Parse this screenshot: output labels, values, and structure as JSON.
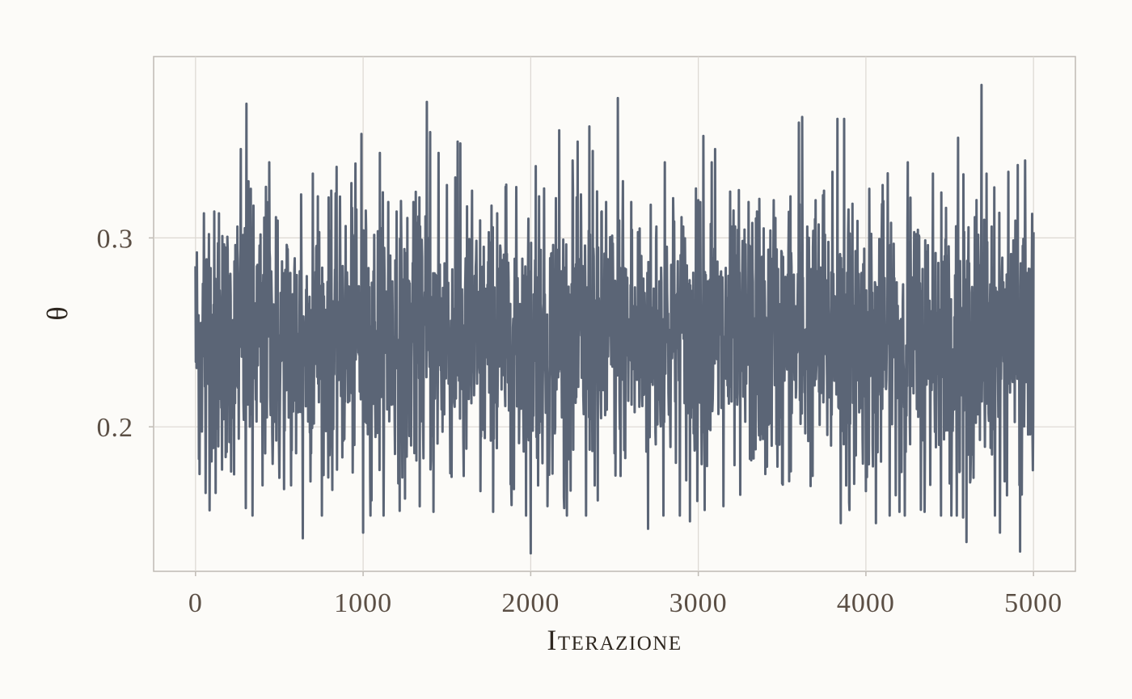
{
  "chart_data": {
    "type": "line",
    "xlabel": "Iterazione",
    "ylabel": "θ",
    "xlim": [
      -250,
      5250
    ],
    "ylim": [
      0.1235,
      0.396
    ],
    "x_ticks": [
      0,
      1000,
      2000,
      3000,
      4000,
      5000
    ],
    "x_tick_labels": [
      "0",
      "1000",
      "2000",
      "3000",
      "4000",
      "5000"
    ],
    "y_ticks": [
      0.2,
      0.3
    ],
    "y_tick_labels": [
      "0.2",
      "0.3"
    ],
    "grid": true,
    "series": [
      {
        "color": "#5b6576",
        "x_start": 1,
        "x_end": 5000,
        "sample_summary": {
          "mean": 0.245,
          "min": 0.133,
          "max": 0.381,
          "n": 5000
        },
        "notable_points": [
          [
            0,
            0.285
          ],
          [
            20,
            0.183
          ],
          [
            50,
            0.313
          ],
          [
            60,
            0.165
          ],
          [
            80,
            0.302
          ],
          [
            120,
            0.165
          ],
          [
            140,
            0.313
          ],
          [
            160,
            0.301
          ],
          [
            180,
            0.184
          ],
          [
            250,
            0.306
          ],
          [
            270,
            0.347
          ],
          [
            300,
            0.157
          ],
          [
            305,
            0.371
          ],
          [
            330,
            0.326
          ],
          [
            340,
            0.153
          ],
          [
            400,
            0.169
          ],
          [
            420,
            0.327
          ],
          [
            440,
            0.34
          ],
          [
            480,
            0.311
          ],
          [
            500,
            0.173
          ],
          [
            550,
            0.294
          ],
          [
            570,
            0.169
          ],
          [
            600,
            0.186
          ],
          [
            630,
            0.323
          ],
          [
            640,
            0.141
          ],
          [
            700,
            0.334
          ],
          [
            730,
            0.322
          ],
          [
            800,
            0.185
          ],
          [
            810,
            0.325
          ],
          [
            860,
            0.285
          ],
          [
            930,
            0.329
          ],
          [
            960,
            0.315
          ],
          [
            990,
            0.355
          ],
          [
            1000,
            0.144
          ],
          [
            1050,
            0.161
          ],
          [
            1100,
            0.345
          ],
          [
            1150,
            0.319
          ],
          [
            1200,
            0.314
          ],
          [
            1250,
            0.162
          ],
          [
            1300,
            0.319
          ],
          [
            1350,
            0.299
          ],
          [
            1380,
            0.372
          ],
          [
            1400,
            0.356
          ],
          [
            1420,
            0.155
          ],
          [
            1450,
            0.345
          ],
          [
            1500,
            0.328
          ],
          [
            1550,
            0.332
          ],
          [
            1580,
            0.35
          ],
          [
            1600,
            0.174
          ],
          [
            1650,
            0.325
          ],
          [
            1700,
            0.166
          ],
          [
            1750,
            0.303
          ],
          [
            1800,
            0.313
          ],
          [
            1850,
            0.327
          ],
          [
            1900,
            0.167
          ],
          [
            1950,
            0.289
          ],
          [
            2000,
            0.133
          ],
          [
            2030,
            0.338
          ],
          [
            2050,
            0.322
          ],
          [
            2100,
            0.158
          ],
          [
            2150,
            0.321
          ],
          [
            2170,
            0.357
          ],
          [
            2200,
            0.157
          ],
          [
            2250,
            0.341
          ],
          [
            2300,
            0.323
          ],
          [
            2330,
            0.153
          ],
          [
            2350,
            0.359
          ],
          [
            2370,
            0.346
          ],
          [
            2400,
            0.161
          ],
          [
            2450,
            0.319
          ],
          [
            2500,
            0.186
          ],
          [
            2520,
            0.374
          ],
          [
            2550,
            0.33
          ],
          [
            2600,
            0.319
          ],
          [
            2650,
            0.305
          ],
          [
            2700,
            0.146
          ],
          [
            2750,
            0.306
          ],
          [
            2800,
            0.34
          ],
          [
            2850,
            0.321
          ],
          [
            2900,
            0.311
          ],
          [
            2950,
            0.15
          ],
          [
            3000,
            0.32
          ],
          [
            3030,
            0.354
          ],
          [
            3080,
            0.34
          ],
          [
            3100,
            0.347
          ],
          [
            3150,
            0.158
          ],
          [
            3200,
            0.306
          ],
          [
            3250,
            0.164
          ],
          [
            3300,
            0.319
          ],
          [
            3350,
            0.314
          ],
          [
            3400,
            0.175
          ],
          [
            3450,
            0.32
          ],
          [
            3500,
            0.17
          ],
          [
            3550,
            0.322
          ],
          [
            3600,
            0.361
          ],
          [
            3620,
            0.364
          ],
          [
            3650,
            0.306
          ],
          [
            3700,
            0.32
          ],
          [
            3750,
            0.325
          ],
          [
            3800,
            0.335
          ],
          [
            3830,
            0.363
          ],
          [
            3850,
            0.149
          ],
          [
            3870,
            0.363
          ],
          [
            3900,
            0.16
          ],
          [
            3950,
            0.309
          ],
          [
            4000,
            0.166
          ],
          [
            4020,
            0.326
          ],
          [
            4060,
            0.149
          ],
          [
            4100,
            0.328
          ],
          [
            4150,
            0.308
          ],
          [
            4200,
            0.155
          ],
          [
            4250,
            0.34
          ],
          [
            4300,
            0.302
          ],
          [
            4350,
            0.155
          ],
          [
            4400,
            0.334
          ],
          [
            4450,
            0.324
          ],
          [
            4500,
            0.17
          ],
          [
            4550,
            0.353
          ],
          [
            4580,
            0.152
          ],
          [
            4600,
            0.139
          ],
          [
            4650,
            0.311
          ],
          [
            4690,
            0.381
          ],
          [
            4720,
            0.334
          ],
          [
            4750,
            0.306
          ],
          [
            4800,
            0.144
          ],
          [
            4850,
            0.335
          ],
          [
            4900,
            0.303
          ],
          [
            4920,
            0.134
          ],
          [
            4950,
            0.341
          ],
          [
            4980,
            0.196
          ],
          [
            5000,
            0.303
          ]
        ]
      }
    ]
  }
}
